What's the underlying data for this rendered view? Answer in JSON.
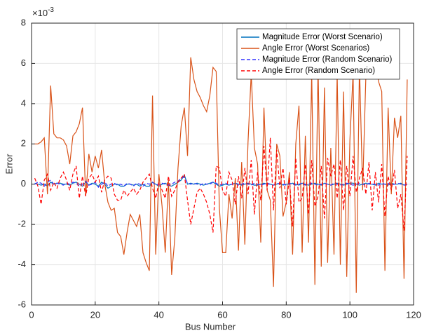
{
  "chart_data": {
    "type": "line",
    "xlabel": "Bus Number",
    "ylabel": "Error",
    "y_multiplier": {
      "base": "×10",
      "exponent": "-3"
    },
    "x": [
      1,
      2,
      3,
      4,
      5,
      6,
      7,
      8,
      9,
      10,
      11,
      12,
      13,
      14,
      15,
      16,
      17,
      18,
      19,
      20,
      21,
      22,
      23,
      24,
      25,
      26,
      27,
      28,
      29,
      30,
      31,
      32,
      33,
      34,
      35,
      36,
      37,
      38,
      39,
      40,
      41,
      42,
      43,
      44,
      45,
      46,
      47,
      48,
      49,
      50,
      51,
      52,
      53,
      54,
      55,
      56,
      57,
      58,
      59,
      60,
      61,
      62,
      63,
      64,
      65,
      66,
      67,
      68,
      69,
      70,
      71,
      72,
      73,
      74,
      75,
      76,
      77,
      78,
      79,
      80,
      81,
      82,
      83,
      84,
      85,
      86,
      87,
      88,
      89,
      90,
      91,
      92,
      93,
      94,
      95,
      96,
      97,
      98,
      99,
      100,
      101,
      102,
      103,
      104,
      105,
      106,
      107,
      108,
      109,
      110,
      111,
      112,
      113,
      114,
      115,
      116,
      117,
      118
    ],
    "series": [
      {
        "name": "Magnitude Error (Worst Scenario)",
        "color": "#0072BD",
        "dash": "solid",
        "values": [
          0.05,
          0,
          -0.05,
          0,
          -0.1,
          0.1,
          0,
          0.05,
          0.05,
          0,
          0,
          -0.05,
          0.05,
          0.1,
          0,
          -0.1,
          0.1,
          -0.05,
          0.05,
          0,
          -0.1,
          0.1,
          0,
          -0.2,
          -0.1,
          0,
          0,
          -0.1,
          -0.1,
          0,
          0,
          -0.05,
          0,
          -0.1,
          0,
          -0.1,
          -0.1,
          0.1,
          0,
          -0.1,
          0,
          0.05,
          -0.05,
          -0.1,
          0,
          0.1,
          0.2,
          0.45,
          0,
          0.05,
          0,
          0.05,
          0,
          -0.05,
          0,
          0.05,
          0.1,
          0,
          -0.1,
          -0.05,
          0,
          -0.05,
          0,
          0.05,
          0,
          -0.05,
          0,
          0.05,
          0,
          -0.05,
          -0.05,
          0,
          0.05,
          0,
          0,
          -0.05,
          0,
          0.05,
          -0.05,
          0,
          0,
          0.05,
          0,
          -0.05,
          0.05,
          0,
          -0.05,
          0,
          0.05,
          0,
          -0.05,
          0.05,
          0,
          -0.05,
          0,
          0.05,
          0,
          -0.05,
          0,
          0.05,
          0.05,
          0,
          -0.05,
          0,
          0.05,
          0,
          0,
          -0.05,
          0.05,
          0,
          0,
          -0.05,
          0.05,
          0,
          0,
          0.05,
          -0.05,
          0
        ]
      },
      {
        "name": "Angle Error (Worst Scenarios)",
        "color": "#D95319",
        "dash": "solid",
        "values": [
          2.0,
          2.0,
          2.1,
          2.3,
          -0.5,
          4.9,
          2.5,
          2.3,
          2.3,
          2.2,
          1.9,
          1.0,
          2.4,
          2.6,
          3.0,
          3.8,
          -0.6,
          1.5,
          0.6,
          1.4,
          0.8,
          1.7,
          0.0,
          -0.9,
          -1.3,
          -1.2,
          -2.4,
          -2.6,
          -3.5,
          -2.4,
          -1.5,
          -1.8,
          -2.1,
          -1.5,
          -3.4,
          -3.9,
          -4.3,
          4.4,
          -3.5,
          0.5,
          -1.1,
          -3.4,
          0.2,
          -4.5,
          -2.7,
          0.8,
          2.9,
          3.8,
          1.4,
          6.3,
          5.2,
          4.6,
          4.3,
          3.9,
          3.6,
          4.4,
          5.8,
          5.6,
          -1.2,
          -3.4,
          -3.4,
          -0.5,
          -1.7,
          0.3,
          -3.3,
          1.1,
          -3.0,
          2.1,
          5.5,
          1.8,
          1.0,
          -2.9,
          3.8,
          -0.3,
          -0.8,
          -5.1,
          2.0,
          1.4,
          -1.6,
          -0.9,
          0.6,
          -3.5,
          2.0,
          3.9,
          -3.4,
          2.4,
          -2.9,
          5.5,
          -5.0,
          5.9,
          -4.1,
          4.8,
          -3.9,
          1.8,
          -3.5,
          5.5,
          -4.0,
          4.6,
          -4.6,
          2.2,
          5.5,
          -5.4,
          5.9,
          -0.3,
          5.3,
          6.5,
          6.2,
          6.0,
          5.1,
          4.6,
          -4.3,
          3.8,
          -0.5,
          3.3,
          2.3,
          3.4,
          -4.7,
          5.2
        ]
      },
      {
        "name": "Magnitude Error (Random Scenario)",
        "color": "#3333ff",
        "dash": "dashed",
        "values": [
          0,
          0.1,
          0.05,
          -0.1,
          0.1,
          0.2,
          0,
          0.05,
          0,
          -0.05,
          0.05,
          0,
          0.1,
          0.05,
          -0.1,
          0,
          0.15,
          -0.05,
          0,
          0.1,
          -0.15,
          0,
          0.1,
          -0.1,
          0,
          0.05,
          -0.05,
          0,
          -0.1,
          0.05,
          0,
          -0.1,
          0.05,
          0,
          -0.1,
          0.05,
          0,
          0.1,
          -0.05,
          0,
          0.05,
          0,
          -0.05,
          0,
          0.1,
          0.15,
          0.3,
          0.35,
          0.05,
          0,
          0.05,
          0,
          -0.05,
          0.05,
          0,
          0,
          0.1,
          0.05,
          -0.05,
          0,
          0.05,
          -0.05,
          0,
          0.05,
          -0.05,
          0,
          0.05,
          0,
          -0.05,
          0.05,
          0,
          -0.05,
          0,
          0.05,
          0,
          -0.05,
          0.05,
          0,
          0,
          -0.05,
          0.05,
          0,
          -0.05,
          0,
          0.05,
          -0.05,
          0,
          0.05,
          0,
          -0.05,
          0,
          0.05,
          0,
          -0.05,
          0.05,
          0,
          -0.05,
          0,
          0.05,
          0,
          -0.05,
          0,
          0.05,
          0,
          -0.05,
          0.05,
          0,
          0,
          -0.05,
          0.05,
          0,
          0.05,
          -0.05,
          0,
          0.05,
          0,
          -0.05,
          0
        ]
      },
      {
        "name": "Angle Error (Random Scenario)",
        "color": "#ff0000",
        "dash": "dashed",
        "values": [
          0.3,
          -0.1,
          -1.0,
          0.2,
          0.5,
          -0.3,
          0.1,
          -0.2,
          0.3,
          0.6,
          0.2,
          -0.3,
          0.5,
          0.9,
          -0.7,
          0.4,
          -0.6,
          0.3,
          0.5,
          0.1,
          0.4,
          -0.4,
          0.2,
          0.4,
          0.3,
          -0.5,
          -0.8,
          -0.8,
          -0.3,
          -0.6,
          -0.4,
          -0.2,
          -0.5,
          -0.3,
          0.1,
          0.3,
          0.5,
          -0.2,
          -0.7,
          0.1,
          -0.3,
          -0.7,
          0.4,
          -0.6,
          -0.3,
          0.1,
          0.3,
          0.5,
          -0.8,
          -2.0,
          -1.2,
          -0.4,
          -0.2,
          -0.5,
          -0.9,
          -1.5,
          -2.4,
          0.9,
          0.8,
          -0.3,
          -0.6,
          0.6,
          0.2,
          -1.0,
          0.4,
          -0.7,
          0.8,
          -0.5,
          1.2,
          -1.5,
          0.6,
          -0.8,
          1.9,
          -0.3,
          2.3,
          -1.3,
          1.7,
          -0.2,
          0.8,
          -1.0,
          0.3,
          -2.1,
          1.3,
          -0.9,
          -0.7,
          1.0,
          -1.5,
          1.2,
          -1.1,
          -0.6,
          0.9,
          -1.7,
          1.3,
          0.4,
          1.0,
          -0.7,
          1.2,
          -1.3,
          0.9,
          -0.6,
          1.4,
          -0.4,
          0.3,
          0.8,
          -0.5,
          1.1,
          -1.3,
          0.6,
          -0.9,
          1.0,
          -1.6,
          0.4,
          -0.3,
          0.7,
          -1.2,
          -0.5,
          -2.3,
          1.4
        ]
      }
    ],
    "xlim": [
      0,
      120
    ],
    "xticks": [
      0,
      20,
      40,
      60,
      80,
      100,
      120
    ],
    "ylim": [
      -6,
      8
    ],
    "yticks": [
      -6,
      -4,
      -2,
      0,
      2,
      4,
      6,
      8
    ],
    "grid": true,
    "legend": "northeast"
  }
}
